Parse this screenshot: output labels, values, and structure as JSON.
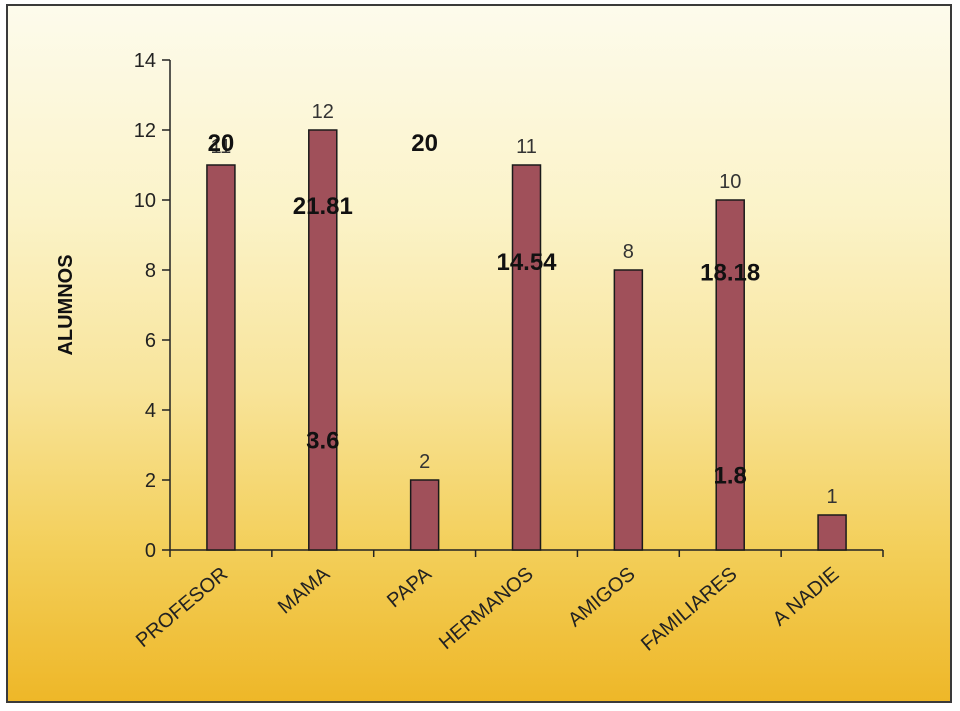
{
  "chart_data": {
    "type": "bar",
    "categories": [
      "PROFESOR",
      "MAMA",
      "PAPA",
      "HERMANOS",
      "AMIGOS",
      "FAMILIARES",
      "A NADIE"
    ],
    "values": [
      11,
      12,
      2,
      11,
      8,
      10,
      1
    ],
    "data_labels": [
      "11",
      "12",
      "2",
      "11",
      "8",
      "10",
      "1"
    ],
    "ylabel": "ALUMNOS",
    "xlabel": "",
    "ylim": [
      0,
      14
    ],
    "yticks": [
      0,
      2,
      4,
      6,
      8,
      10,
      12,
      14
    ],
    "grid": false,
    "bar_color": "#a0505a",
    "annotations": [
      {
        "text": "20",
        "x_category": 0,
        "y": 11.4
      },
      {
        "text": "21.81",
        "x_category": 1,
        "y": 9.6
      },
      {
        "text": "20",
        "x_category": 2,
        "y": 11.4
      },
      {
        "text": "3.6",
        "x_category": 1,
        "y": 2.9
      },
      {
        "text": "14.54",
        "x_category": 3,
        "y": 8.0
      },
      {
        "text": "18.18",
        "x_category": 5,
        "y": 7.7
      },
      {
        "text": "1.8",
        "x_category": 5,
        "y": 1.9
      }
    ]
  }
}
